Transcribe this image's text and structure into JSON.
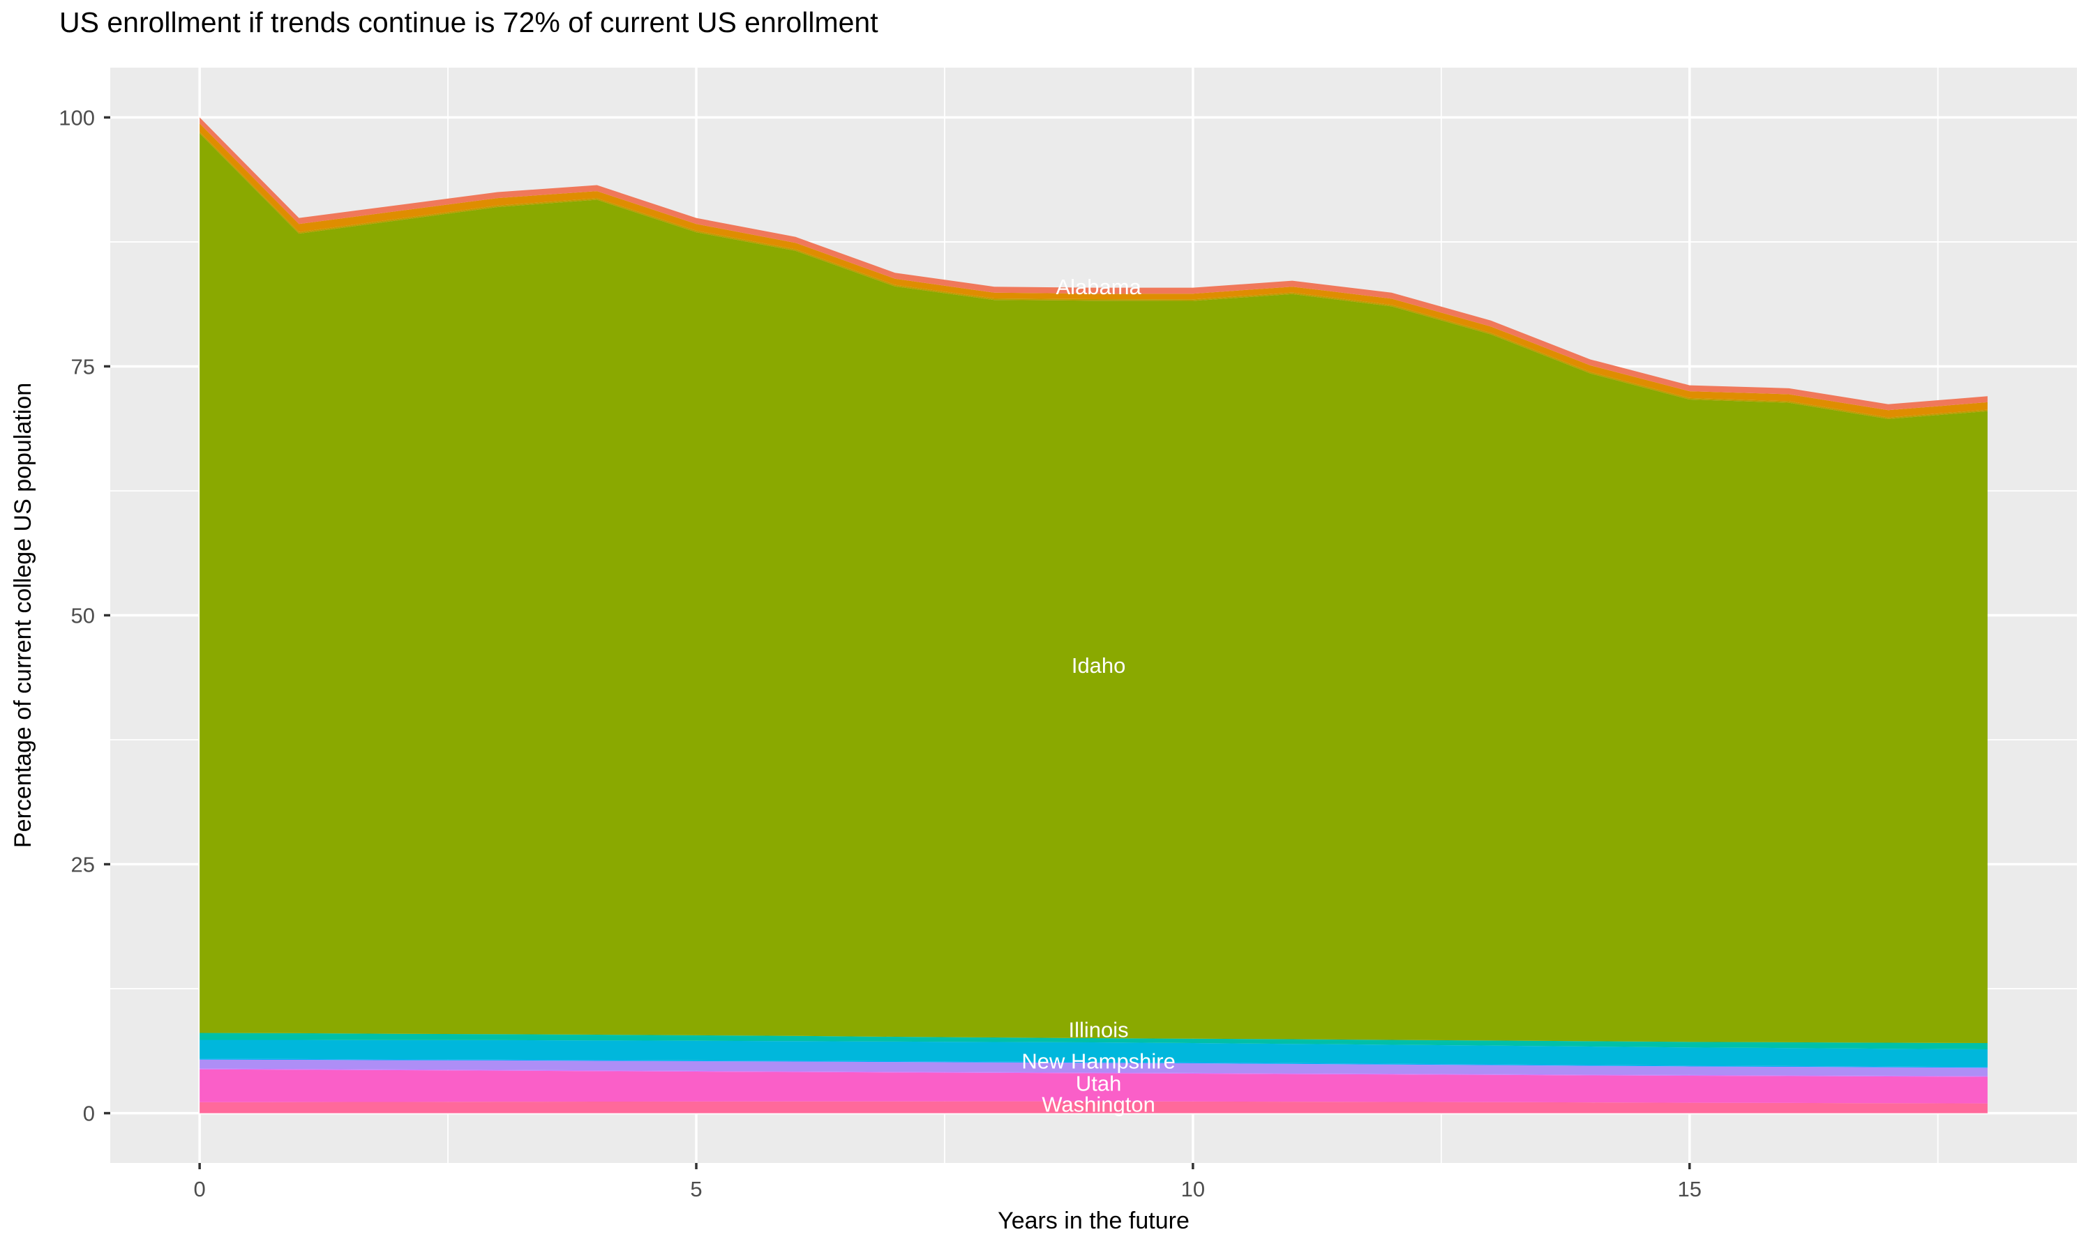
{
  "page": {
    "title": "US enrollment if trends continue is 72% of current US enrollment"
  },
  "chart_data": {
    "type": "area",
    "stacked": true,
    "title": "US enrollment if trends continue is 72% of current US enrollment",
    "xlabel": "Years in the future",
    "ylabel": "Percentage of current college US population",
    "x": [
      0,
      1,
      2,
      3,
      4,
      5,
      6,
      7,
      8,
      9,
      10,
      11,
      12,
      13,
      14,
      15,
      16,
      17,
      18
    ],
    "x_ticks": [
      0,
      5,
      10,
      15
    ],
    "y_ticks": [
      0,
      25,
      50,
      75,
      100
    ],
    "x_minor": [
      2.5,
      7.5,
      12.5,
      17.5
    ],
    "y_minor": [
      12.5,
      37.5,
      62.5,
      87.5
    ],
    "xlim": [
      -0.9,
      18.9
    ],
    "ylim": [
      -5,
      105
    ],
    "grid": true,
    "legend": "none",
    "panel_bg": "#EBEBEB",
    "grid_color": "#FFFFFF",
    "tick_label_color": "#4D4D4D",
    "tick_mark_color": "#333333",
    "annotation_color": "#FFFFFF",
    "total_final_percent": 72,
    "series": [
      {
        "id": "washington",
        "label": "Washington",
        "color": "#FF699B",
        "label_x": 9.05,
        "label_y": 0.9,
        "values": [
          1.1,
          1.12,
          1.13,
          1.15,
          1.16,
          1.17,
          1.18,
          1.18,
          1.19,
          1.19,
          1.17,
          1.15,
          1.13,
          1.11,
          1.08,
          1.05,
          1.03,
          1.0,
          0.98
        ]
      },
      {
        "id": "utah",
        "label": "Utah",
        "color": "#FA5FC8",
        "label_x": 9.05,
        "label_y": 3.0,
        "values": [
          3.3,
          3.24,
          3.18,
          3.12,
          3.06,
          3.0,
          2.95,
          2.9,
          2.85,
          2.81,
          2.79,
          2.77,
          2.75,
          2.73,
          2.71,
          2.7,
          2.69,
          2.68,
          2.67
        ]
      },
      {
        "id": "unlabeled_band_1",
        "label": "",
        "color": "#D575FE",
        "values": [
          0.08,
          0.08,
          0.08,
          0.08,
          0.08,
          0.08,
          0.08,
          0.08,
          0.08,
          0.08,
          0.08,
          0.08,
          0.08,
          0.08,
          0.08,
          0.08,
          0.08,
          0.08,
          0.08
        ]
      },
      {
        "id": "new_hampshire",
        "label": "New Hampshire",
        "color": "#AE8EF6",
        "label_x": 9.05,
        "label_y": 5.25,
        "values": [
          0.9,
          0.92,
          0.93,
          0.95,
          0.96,
          0.97,
          0.98,
          0.98,
          0.98,
          0.98,
          0.97,
          0.95,
          0.93,
          0.91,
          0.89,
          0.87,
          0.86,
          0.85,
          0.84
        ]
      },
      {
        "id": "unlabeled_band_2",
        "label": "",
        "color": "#00ACFC",
        "values": [
          0.08,
          0.08,
          0.08,
          0.08,
          0.08,
          0.08,
          0.08,
          0.08,
          0.08,
          0.08,
          0.08,
          0.08,
          0.08,
          0.08,
          0.08,
          0.08,
          0.08,
          0.08,
          0.08
        ]
      },
      {
        "id": "illinois",
        "label": "Illinois",
        "color": "#00B7DC",
        "label_x": 9.05,
        "label_y": 8.4,
        "values": [
          1.9,
          1.92,
          1.93,
          1.95,
          1.96,
          1.97,
          1.97,
          1.97,
          1.97,
          1.97,
          1.95,
          1.93,
          1.9,
          1.88,
          1.85,
          1.82,
          1.8,
          1.78,
          1.76
        ]
      },
      {
        "id": "unlabeled_band_3",
        "label": "",
        "color": "#00C0A8",
        "values": [
          0.7,
          0.67,
          0.64,
          0.61,
          0.58,
          0.55,
          0.52,
          0.48,
          0.45,
          0.42,
          0.44,
          0.47,
          0.49,
          0.51,
          0.54,
          0.56,
          0.58,
          0.61,
          0.63
        ]
      },
      {
        "id": "idaho",
        "label": "Idaho",
        "color": "#8AA900",
        "label_x": 9.05,
        "label_y": 45.0,
        "values": [
          90.34,
          80.3,
          81.7,
          83.06,
          83.85,
          80.65,
          78.84,
          75.36,
          74.07,
          74.07,
          74.1,
          74.83,
          73.67,
          70.91,
          67.06,
          64.51,
          64.23,
          62.64,
          63.46
        ]
      },
      {
        "id": "unlabeled_band_4",
        "label": "",
        "color": "#BE9C00",
        "values": [
          0.15,
          0.15,
          0.15,
          0.15,
          0.15,
          0.15,
          0.15,
          0.15,
          0.15,
          0.15,
          0.15,
          0.15,
          0.15,
          0.15,
          0.15,
          0.15,
          0.15,
          0.15,
          0.15
        ]
      },
      {
        "id": "unlabeled_band_5",
        "label": "",
        "color": "#DF8D00",
        "values": [
          0.85,
          0.82,
          0.78,
          0.75,
          0.72,
          0.68,
          0.65,
          0.62,
          0.58,
          0.55,
          0.57,
          0.59,
          0.62,
          0.64,
          0.66,
          0.68,
          0.7,
          0.73,
          0.75
        ]
      },
      {
        "id": "alabama",
        "label": "Alabama",
        "color": "#F0785A",
        "label_x": 9.05,
        "label_y": 83.0,
        "values": [
          0.6,
          0.6,
          0.6,
          0.6,
          0.6,
          0.6,
          0.6,
          0.6,
          0.6,
          0.6,
          0.6,
          0.6,
          0.6,
          0.6,
          0.6,
          0.6,
          0.6,
          0.6,
          0.6
        ]
      }
    ]
  }
}
